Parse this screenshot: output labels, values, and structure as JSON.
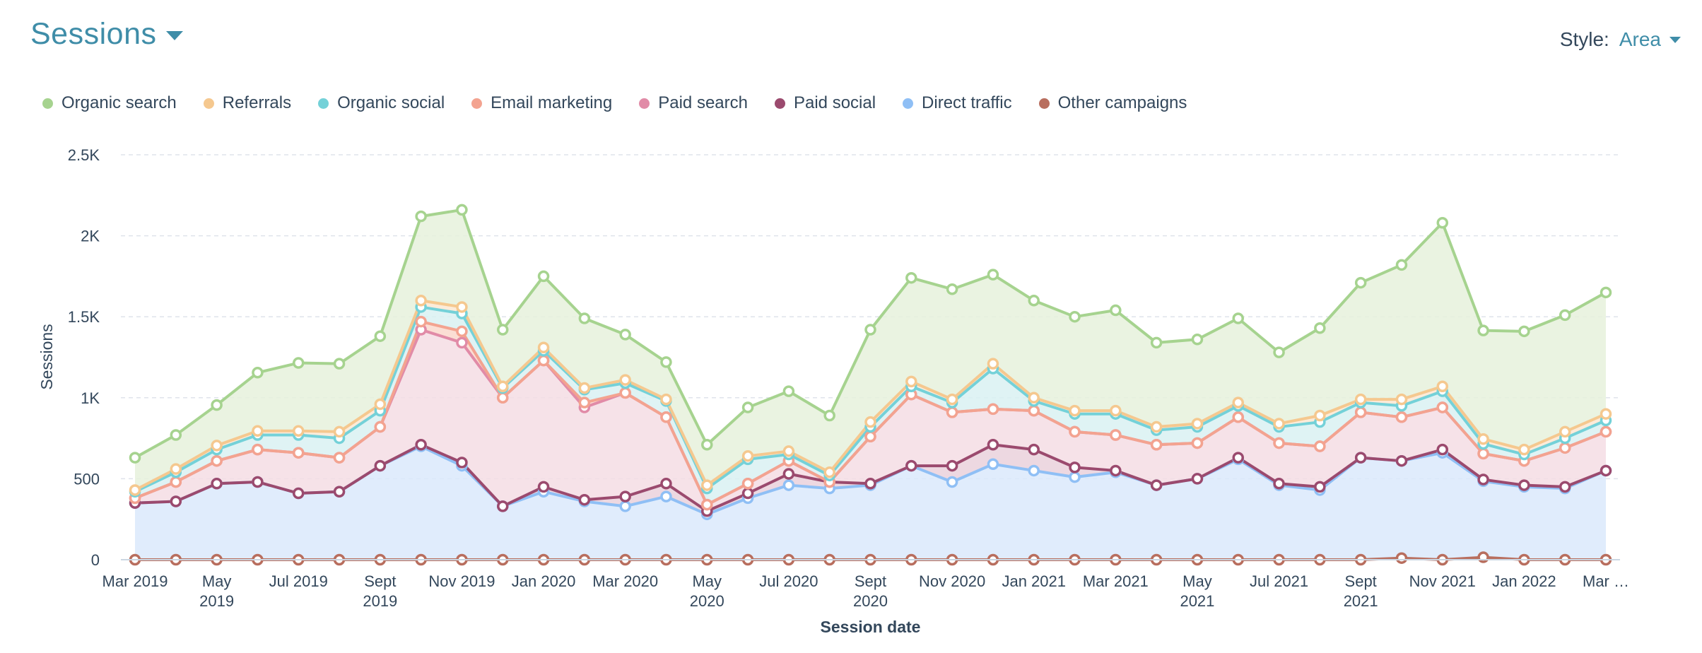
{
  "header": {
    "title": "Sessions",
    "style_label": "Style:",
    "style_value": "Area"
  },
  "chart_data": {
    "type": "area",
    "stacked": true,
    "xlabel": "Session date",
    "ylabel": "Sessions",
    "ylim": [
      0,
      2500
    ],
    "y_ticks": [
      0,
      500,
      1000,
      1500,
      2000,
      2500
    ],
    "y_tick_labels": [
      "0",
      "500",
      "1K",
      "1.5K",
      "2K",
      "2.5K"
    ],
    "grid": true,
    "legend_position": "top-left",
    "x": [
      "Mar 2019",
      "Apr 2019",
      "May 2019",
      "Jun 2019",
      "Jul 2019",
      "Aug 2019",
      "Sept 2019",
      "Oct 2019",
      "Nov 2019",
      "Dec 2019",
      "Jan 2020",
      "Feb 2020",
      "Mar 2020",
      "Apr 2020",
      "May 2020",
      "Jun 2020",
      "Jul 2020",
      "Aug 2020",
      "Sept 2020",
      "Oct 2020",
      "Nov 2020",
      "Dec 2020",
      "Jan 2021",
      "Feb 2021",
      "Mar 2021",
      "Apr 2021",
      "May 2021",
      "Jun 2021",
      "Jul 2021",
      "Aug 2021",
      "Sept 2021",
      "Oct 2021",
      "Nov 2021",
      "Dec 2021",
      "Jan 2022",
      "Feb 2022",
      "Mar 2022"
    ],
    "x_tick_labels": [
      {
        "index": 0,
        "lines": [
          "Mar 2019"
        ]
      },
      {
        "index": 2,
        "lines": [
          "May",
          "2019"
        ]
      },
      {
        "index": 4,
        "lines": [
          "Jul 2019"
        ]
      },
      {
        "index": 6,
        "lines": [
          "Sept",
          "2019"
        ]
      },
      {
        "index": 8,
        "lines": [
          "Nov 2019"
        ]
      },
      {
        "index": 10,
        "lines": [
          "Jan 2020"
        ]
      },
      {
        "index": 12,
        "lines": [
          "Mar 2020"
        ]
      },
      {
        "index": 14,
        "lines": [
          "May",
          "2020"
        ]
      },
      {
        "index": 16,
        "lines": [
          "Jul 2020"
        ]
      },
      {
        "index": 18,
        "lines": [
          "Sept",
          "2020"
        ]
      },
      {
        "index": 20,
        "lines": [
          "Nov 2020"
        ]
      },
      {
        "index": 22,
        "lines": [
          "Jan 2021"
        ]
      },
      {
        "index": 24,
        "lines": [
          "Mar 2021"
        ]
      },
      {
        "index": 26,
        "lines": [
          "May",
          "2021"
        ]
      },
      {
        "index": 28,
        "lines": [
          "Jul 2021"
        ]
      },
      {
        "index": 30,
        "lines": [
          "Sept",
          "2021"
        ]
      },
      {
        "index": 32,
        "lines": [
          "Nov 2021"
        ]
      },
      {
        "index": 34,
        "lines": [
          "Jan 2022"
        ]
      },
      {
        "index": 36,
        "lines": [
          "Mar …"
        ]
      }
    ],
    "series": [
      {
        "name": "Organic search",
        "color": "#a6d38f",
        "fill": "#e6f1dc",
        "values": [
          200,
          210,
          250,
          360,
          420,
          420,
          420,
          520,
          600,
          350,
          440,
          430,
          280,
          230,
          250,
          300,
          370,
          350,
          570,
          640,
          680,
          550,
          600,
          580,
          620,
          520,
          520,
          520,
          440,
          540,
          720,
          830,
          1010,
          670,
          730,
          720,
          750
        ]
      },
      {
        "name": "Referrals",
        "color": "#f5c88f",
        "fill": "#fbe8d2",
        "values": [
          10,
          20,
          25,
          25,
          25,
          40,
          40,
          40,
          40,
          10,
          20,
          10,
          20,
          10,
          20,
          20,
          20,
          20,
          30,
          30,
          20,
          30,
          20,
          20,
          20,
          20,
          20,
          20,
          20,
          40,
          20,
          40,
          30,
          30,
          30,
          40,
          40
        ]
      },
      {
        "name": "Organic social",
        "color": "#74d1d8",
        "fill": "#d9f1f2",
        "values": [
          40,
          60,
          70,
          90,
          110,
          120,
          100,
          90,
          110,
          60,
          60,
          80,
          60,
          100,
          100,
          150,
          40,
          40,
          60,
          50,
          60,
          250,
          60,
          110,
          130,
          90,
          100,
          70,
          100,
          150,
          60,
          70,
          100,
          60,
          40,
          60,
          70
        ]
      },
      {
        "name": "Email marketing",
        "color": "#f3a390",
        "fill": "#fad8cd",
        "values": [
          0,
          0,
          0,
          0,
          0,
          0,
          0,
          50,
          70,
          0,
          0,
          30,
          0,
          0,
          0,
          0,
          0,
          0,
          0,
          0,
          0,
          0,
          0,
          0,
          0,
          0,
          0,
          0,
          0,
          0,
          0,
          0,
          0,
          0,
          0,
          0,
          0
        ]
      },
      {
        "name": "Paid search",
        "color": "#e18ba7",
        "fill": "#f4dde4",
        "values": [
          30,
          120,
          140,
          200,
          250,
          210,
          240,
          710,
          740,
          670,
          780,
          570,
          640,
          410,
          40,
          60,
          80,
          0,
          290,
          440,
          330,
          220,
          240,
          220,
          220,
          250,
          220,
          250,
          250,
          250,
          280,
          270,
          260,
          160,
          150,
          240,
          240
        ]
      },
      {
        "name": "Paid social",
        "color": "#9b4a6e",
        "fill": "#ead1dc",
        "values": [
          0,
          0,
          0,
          0,
          0,
          0,
          0,
          10,
          20,
          0,
          30,
          10,
          60,
          80,
          20,
          30,
          70,
          40,
          10,
          0,
          100,
          120,
          130,
          60,
          10,
          0,
          0,
          10,
          10,
          20,
          0,
          0,
          20,
          10,
          10,
          10,
          0
        ]
      },
      {
        "name": "Direct traffic",
        "color": "#8fbff5",
        "fill": "#dbe9fb",
        "values": [
          350,
          360,
          470,
          480,
          410,
          420,
          580,
          700,
          580,
          330,
          420,
          360,
          330,
          390,
          280,
          380,
          460,
          440,
          460,
          580,
          480,
          590,
          550,
          510,
          540,
          460,
          500,
          620,
          460,
          430,
          630,
          600,
          660,
          470,
          450,
          440,
          550
        ]
      },
      {
        "name": "Other campaigns",
        "color": "#b86e5e",
        "fill": "#efdcd7",
        "values": [
          0,
          0,
          0,
          0,
          0,
          0,
          0,
          0,
          0,
          0,
          0,
          0,
          0,
          0,
          0,
          0,
          0,
          0,
          0,
          0,
          0,
          0,
          0,
          0,
          0,
          0,
          0,
          0,
          0,
          0,
          0,
          10,
          0,
          15,
          0,
          0,
          0
        ]
      }
    ]
  }
}
